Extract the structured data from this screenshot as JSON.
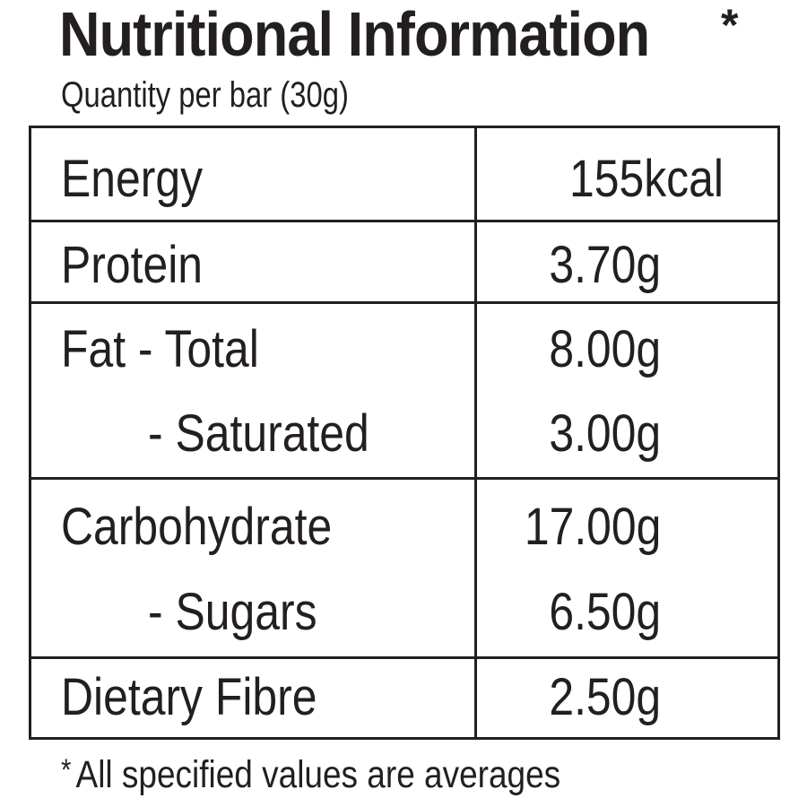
{
  "header": {
    "title": "Nutritional Information",
    "title_marker": "*",
    "subtitle": "Quantity per bar (30g)"
  },
  "table": {
    "rows": [
      {
        "label": "Energy",
        "value": "155kcal"
      },
      {
        "label": "Protein",
        "value": "3.70g"
      },
      {
        "label": "Fat - Total",
        "value": "8.00g"
      },
      {
        "label": "- Saturated",
        "value": "3.00g"
      },
      {
        "label": "Carbohydrate",
        "value": "17.00g"
      },
      {
        "label": "- Sugars",
        "value": "6.50g"
      },
      {
        "label": "Dietary Fibre",
        "value": "2.50g"
      }
    ]
  },
  "footnote": {
    "marker": "*",
    "text": "All specified values are averages"
  }
}
